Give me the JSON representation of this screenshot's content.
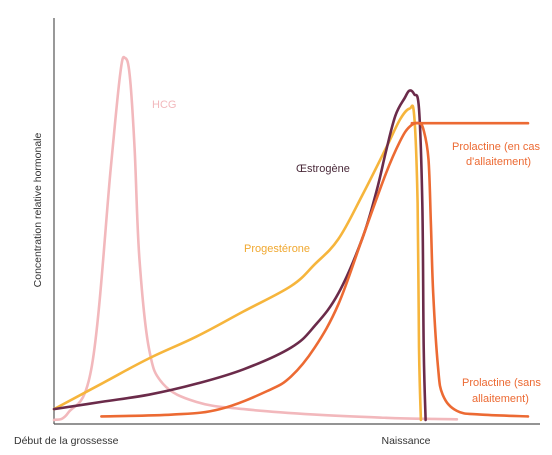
{
  "chart_data": {
    "type": "line",
    "ylabel": "Concentration relative hormonale",
    "x_tick_labels": [
      "Début de la grossesse",
      "Naissance"
    ],
    "x_tick_positions": [
      0,
      80
    ],
    "xlim": [
      0,
      100
    ],
    "ylim": [
      0,
      100
    ],
    "series": [
      {
        "name": "HCG",
        "color": "#f2b8bc",
        "x": [
          0,
          3,
          8,
          12,
          14,
          15,
          16,
          17,
          18,
          20,
          23,
          30,
          40,
          55,
          70,
          80,
          85
        ],
        "y": [
          0,
          2,
          15,
          70,
          96,
          100,
          95,
          75,
          45,
          20,
          10,
          5,
          3,
          1.5,
          0.6,
          0.3,
          0.2
        ]
      },
      {
        "name": "Progestérone",
        "color": "#f6b53c",
        "x": [
          0,
          10,
          20,
          30,
          40,
          50,
          55,
          60,
          65,
          70,
          73,
          75,
          76,
          76.7,
          77,
          77.4
        ],
        "y": [
          3,
          10,
          17,
          23,
          30,
          37,
          43,
          50,
          62,
          75,
          83,
          86,
          84,
          60,
          20,
          0
        ]
      },
      {
        "name": "Œstrogène",
        "color": "#6b2b4a",
        "x": [
          0,
          10,
          20,
          30,
          40,
          50,
          55,
          60,
          65,
          68,
          70,
          72,
          74,
          75,
          76,
          77,
          77.7,
          78,
          78.4
        ],
        "y": [
          3,
          5,
          7,
          10,
          14,
          20,
          26,
          35,
          50,
          63,
          74,
          84,
          89,
          91,
          90,
          86,
          60,
          20,
          0
        ]
      },
      {
        "name": "Prolactine (sans allaitement)",
        "color": "#ec6a33",
        "x": [
          10,
          25,
          35,
          45,
          50,
          55,
          60,
          65,
          70,
          73,
          75,
          77,
          78,
          79,
          79.5,
          80,
          81,
          82,
          85,
          90,
          100
        ],
        "y": [
          1,
          1.5,
          3,
          8,
          12,
          20,
          32,
          50,
          68,
          77,
          81,
          82,
          80,
          72,
          55,
          35,
          15,
          7,
          2.5,
          1.5,
          1
        ]
      },
      {
        "name": "Prolactine (en cas d'allaitement)",
        "color": "#ec6a33",
        "x": [
          75.5,
          100
        ],
        "y": [
          82,
          82
        ]
      }
    ],
    "labels": {
      "hcg": "HCG",
      "estrogen": "Œstrogène",
      "progesterone": "Progestérone",
      "prolactin_feeding_1": "Prolactine (en cas",
      "prolactin_feeding_2": "d'allaitement)",
      "prolactin_no_feeding_1": "Prolactine (sans",
      "prolactin_no_feeding_2": "allaitement)"
    },
    "label_colors": {
      "hcg": "#f2b8bc",
      "estrogen": "#4a2a3a",
      "progesterone": "#f0a830",
      "prolactin": "#ec6a33"
    },
    "grid": false,
    "legend": "none"
  }
}
